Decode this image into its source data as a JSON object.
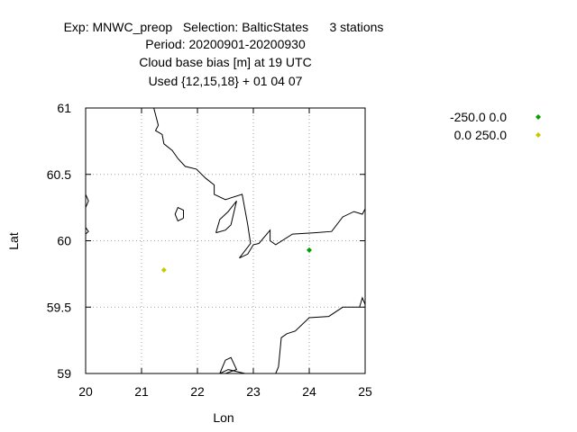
{
  "title_lines": [
    "Exp: MNWC_preop   Selection: BalticStates      3 stations",
    "Period: 20200901-20200930",
    "Cloud base bias [m] at  19 UTC",
    "Used {12,15,18} + 01 04 07"
  ],
  "chart_data": {
    "type": "scatter",
    "xlabel": "Lon",
    "ylabel": "Lat",
    "xlim": [
      20,
      25
    ],
    "ylim": [
      59,
      61
    ],
    "xticks": [
      20,
      21,
      22,
      23,
      24,
      25
    ],
    "yticks": [
      59,
      59.5,
      60,
      60.5,
      61
    ],
    "xtick_labels": [
      "20",
      "21",
      "22",
      "23",
      "24",
      "25"
    ],
    "ytick_labels": [
      "59",
      "59.5",
      "60",
      "60.5",
      "61"
    ],
    "grid": true,
    "legend_position": "top-right outside",
    "series": [
      {
        "name": "-250.0 0.0",
        "color": "#00a000",
        "points": [
          [
            24.0,
            59.93
          ]
        ]
      },
      {
        "name": "0.0 250.0",
        "color": "#c8c800",
        "points": [
          [
            21.4,
            59.78
          ]
        ]
      }
    ],
    "coastlines": [
      [
        [
          21.22,
          61.0
        ],
        [
          21.3,
          60.87
        ],
        [
          21.25,
          60.83
        ],
        [
          21.37,
          60.8
        ],
        [
          21.4,
          60.73
        ],
        [
          21.55,
          60.68
        ],
        [
          21.65,
          60.62
        ],
        [
          21.78,
          60.56
        ],
        [
          21.98,
          60.54
        ],
        [
          22.15,
          60.47
        ],
        [
          22.3,
          60.42
        ],
        [
          22.3,
          60.35
        ],
        [
          22.5,
          60.31
        ],
        [
          22.8,
          60.35
        ],
        [
          22.9,
          60.12
        ],
        [
          22.95,
          59.98
        ],
        [
          22.75,
          59.87
        ],
        [
          22.9,
          59.9
        ],
        [
          23.0,
          59.97
        ],
        [
          23.1,
          59.98
        ],
        [
          23.3,
          60.08
        ],
        [
          23.3,
          60.0
        ],
        [
          23.4,
          59.97
        ],
        [
          23.7,
          60.05
        ],
        [
          24.1,
          60.06
        ],
        [
          24.4,
          60.07
        ],
        [
          24.6,
          60.18
        ],
        [
          24.8,
          60.22
        ],
        [
          24.95,
          60.2
        ],
        [
          25.0,
          60.24
        ]
      ],
      [
        [
          21.75,
          60.17
        ],
        [
          21.65,
          60.15
        ],
        [
          21.6,
          60.2
        ],
        [
          21.65,
          60.25
        ],
        [
          21.75,
          60.23
        ],
        [
          21.75,
          60.17
        ]
      ],
      [
        [
          22.33,
          60.06
        ],
        [
          22.4,
          60.16
        ],
        [
          22.55,
          60.22
        ],
        [
          22.7,
          60.3
        ],
        [
          22.6,
          60.12
        ],
        [
          22.5,
          60.08
        ],
        [
          22.33,
          60.06
        ]
      ],
      [
        [
          20.0,
          60.35
        ],
        [
          20.05,
          60.3
        ],
        [
          20.0,
          60.25
        ]
      ],
      [
        [
          20.0,
          60.1
        ],
        [
          20.05,
          60.07
        ],
        [
          20.0,
          60.05
        ]
      ],
      [
        [
          23.4,
          59.0
        ],
        [
          23.45,
          59.05
        ],
        [
          23.5,
          59.27
        ],
        [
          23.6,
          59.3
        ],
        [
          23.75,
          59.32
        ],
        [
          24.0,
          59.42
        ],
        [
          24.35,
          59.43
        ],
        [
          24.6,
          59.5
        ],
        [
          24.9,
          59.5
        ],
        [
          24.95,
          59.57
        ],
        [
          25.0,
          59.52
        ]
      ],
      [
        [
          22.4,
          59.0
        ],
        [
          22.5,
          59.1
        ],
        [
          22.6,
          59.12
        ],
        [
          22.7,
          59.03
        ],
        [
          22.5,
          59.0
        ]
      ],
      [
        [
          22.4,
          59.0
        ],
        [
          22.55,
          59.03
        ],
        [
          22.85,
          59.0
        ]
      ]
    ]
  }
}
